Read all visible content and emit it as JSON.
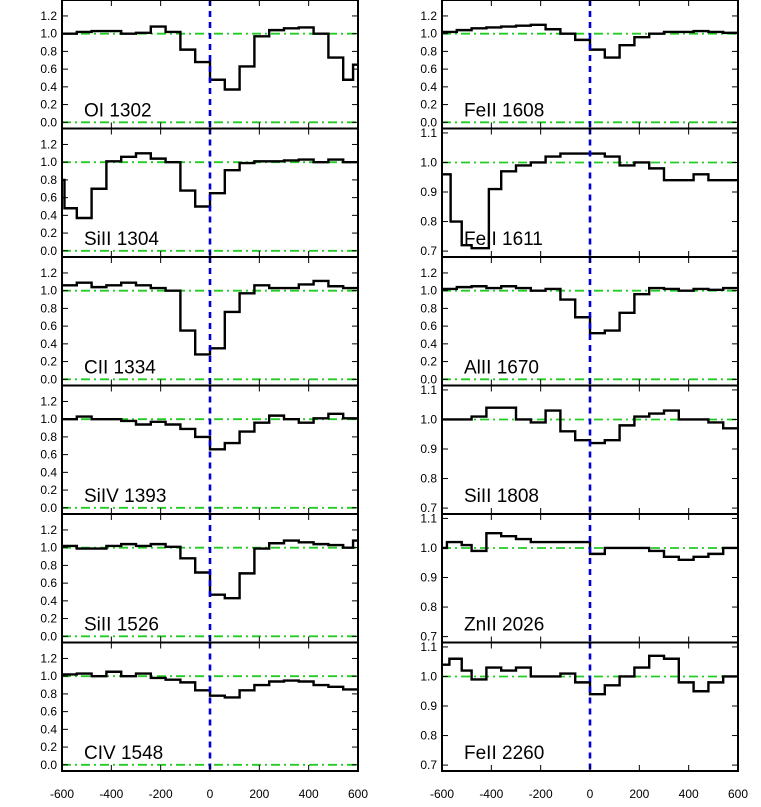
{
  "chart_data": {
    "type": "line",
    "layout": "2 columns x 6 rows of stacked velocity-profile panels",
    "x_ticks": [
      -600,
      -400,
      -200,
      0,
      200,
      400,
      600
    ],
    "xlim": [
      -600,
      600
    ],
    "xlabel": "",
    "ylabel": "",
    "colors": {
      "spectrum": "#000000",
      "reference_lines": "#22cc22",
      "zero_velocity": "#0000dd"
    },
    "panels": [
      {
        "label": "OI 1302",
        "col": 0,
        "row": 0,
        "ylim": [
          -0.07,
          1.38
        ],
        "y_ticks": [
          0.0,
          0.2,
          0.4,
          0.6,
          0.8,
          1.0,
          1.2
        ],
        "y_ticklabels": [
          "0.0",
          "0.2",
          "0.4",
          "0.6",
          "0.8",
          "1.0",
          "1.2"
        ],
        "ref_lines": [
          1.0,
          0.0
        ],
        "edges": [
          -600,
          -540,
          -480,
          -420,
          -360,
          -300,
          -240,
          -180,
          -120,
          -60,
          0,
          60,
          120,
          180,
          240,
          300,
          360,
          420,
          480,
          540,
          580,
          600
        ],
        "values": [
          1.0,
          1.02,
          1.03,
          1.03,
          1.0,
          1.01,
          1.08,
          1.02,
          0.82,
          0.68,
          0.48,
          0.37,
          0.63,
          0.97,
          1.04,
          1.06,
          1.07,
          1.0,
          0.73,
          0.48,
          0.65
        ]
      },
      {
        "label": "SiII 1304",
        "col": 0,
        "row": 1,
        "ylim": [
          -0.07,
          1.38
        ],
        "y_ticks": [
          0.0,
          0.2,
          0.4,
          0.6,
          0.8,
          1.0,
          1.2
        ],
        "y_ticklabels": [
          "0.0",
          "0.2",
          "0.4",
          "0.6",
          "0.8",
          "1.0",
          "1.2"
        ],
        "ref_lines": [
          1.0,
          0.0
        ],
        "edges": [
          -600,
          -590,
          -540,
          -480,
          -420,
          -360,
          -300,
          -240,
          -180,
          -120,
          -60,
          0,
          60,
          120,
          180,
          240,
          300,
          360,
          420,
          480,
          540,
          600
        ],
        "values": [
          0.8,
          0.48,
          0.37,
          0.7,
          1.01,
          1.06,
          1.1,
          1.04,
          1.0,
          0.68,
          0.5,
          0.65,
          0.91,
          0.99,
          1.01,
          1.01,
          1.02,
          1.03,
          1.0,
          1.03,
          1.0
        ]
      },
      {
        "label": "CII 1334",
        "col": 0,
        "row": 2,
        "ylim": [
          -0.07,
          1.38
        ],
        "y_ticks": [
          0.0,
          0.2,
          0.4,
          0.6,
          0.8,
          1.0,
          1.2
        ],
        "y_ticklabels": [
          "0.0",
          "0.2",
          "0.4",
          "0.6",
          "0.8",
          "1.0",
          "1.2"
        ],
        "ref_lines": [
          1.0,
          0.0
        ],
        "edges": [
          -600,
          -540,
          -480,
          -420,
          -360,
          -300,
          -240,
          -180,
          -120,
          -60,
          0,
          60,
          120,
          180,
          240,
          300,
          360,
          420,
          480,
          540,
          600
        ],
        "values": [
          1.06,
          1.09,
          1.04,
          1.06,
          1.09,
          1.06,
          1.03,
          1.0,
          0.55,
          0.28,
          0.35,
          0.76,
          0.97,
          1.06,
          1.03,
          1.03,
          1.07,
          1.11,
          1.05,
          1.03
        ]
      },
      {
        "label": "SiIV 1393",
        "col": 0,
        "row": 3,
        "ylim": [
          -0.07,
          1.38
        ],
        "y_ticks": [
          0.0,
          0.2,
          0.4,
          0.6,
          0.8,
          1.0,
          1.2
        ],
        "y_ticklabels": [
          "0.0",
          "0.2",
          "0.4",
          "0.6",
          "0.8",
          "1.0",
          "1.2"
        ],
        "ref_lines": [
          1.0,
          0.0
        ],
        "edges": [
          -600,
          -540,
          -480,
          -420,
          -360,
          -300,
          -240,
          -180,
          -120,
          -60,
          0,
          60,
          120,
          180,
          240,
          300,
          360,
          420,
          480,
          540,
          600
        ],
        "values": [
          1.0,
          1.03,
          1.0,
          1.0,
          0.98,
          0.94,
          0.97,
          0.94,
          0.89,
          0.8,
          0.66,
          0.73,
          0.86,
          0.96,
          1.04,
          1.0,
          0.96,
          1.01,
          1.06,
          1.01
        ]
      },
      {
        "label": "SiII 1526",
        "col": 0,
        "row": 4,
        "ylim": [
          -0.07,
          1.38
        ],
        "y_ticks": [
          0.0,
          0.2,
          0.4,
          0.6,
          0.8,
          1.0,
          1.2
        ],
        "y_ticklabels": [
          "0.0",
          "0.2",
          "0.4",
          "0.6",
          "0.8",
          "1.0",
          "1.2"
        ],
        "ref_lines": [
          1.0,
          0.0
        ],
        "edges": [
          -600,
          -540,
          -480,
          -420,
          -360,
          -300,
          -240,
          -180,
          -120,
          -60,
          0,
          60,
          120,
          180,
          240,
          300,
          360,
          420,
          480,
          540,
          580,
          600
        ],
        "values": [
          1.02,
          0.99,
          0.99,
          1.02,
          1.04,
          1.02,
          1.04,
          1.01,
          0.88,
          0.72,
          0.47,
          0.43,
          0.71,
          0.99,
          1.05,
          1.08,
          1.06,
          1.04,
          1.03,
          1.0,
          1.08
        ]
      },
      {
        "label": "CIV 1548",
        "col": 0,
        "row": 5,
        "ylim": [
          -0.07,
          1.38
        ],
        "y_ticks": [
          0.0,
          0.2,
          0.4,
          0.6,
          0.8,
          1.0,
          1.2
        ],
        "y_ticklabels": [
          "0.0",
          "0.2",
          "0.4",
          "0.6",
          "0.8",
          "1.0",
          "1.2"
        ],
        "ref_lines": [
          1.0,
          0.0
        ],
        "edges": [
          -600,
          -540,
          -480,
          -420,
          -360,
          -300,
          -240,
          -180,
          -120,
          -60,
          0,
          60,
          120,
          180,
          240,
          300,
          360,
          420,
          480,
          540,
          600
        ],
        "values": [
          1.02,
          1.03,
          1.0,
          1.05,
          1.0,
          1.03,
          0.98,
          0.96,
          0.93,
          0.84,
          0.78,
          0.76,
          0.84,
          0.9,
          0.94,
          0.95,
          0.94,
          0.9,
          0.88,
          0.85
        ]
      },
      {
        "label": "FeII 1608",
        "col": 1,
        "row": 0,
        "ylim": [
          -0.07,
          1.38
        ],
        "y_ticks": [
          0.0,
          0.2,
          0.4,
          0.6,
          0.8,
          1.0,
          1.2
        ],
        "y_ticklabels": [
          "0.0",
          "0.2",
          "0.4",
          "0.6",
          "0.8",
          "1.0",
          "1.2"
        ],
        "ref_lines": [
          1.0,
          0.0
        ],
        "edges": [
          -600,
          -540,
          -480,
          -420,
          -360,
          -300,
          -240,
          -180,
          -120,
          -60,
          0,
          60,
          120,
          180,
          240,
          300,
          360,
          420,
          480,
          540,
          600
        ],
        "values": [
          1.02,
          1.04,
          1.06,
          1.07,
          1.08,
          1.09,
          1.1,
          1.05,
          1.0,
          0.93,
          0.82,
          0.73,
          0.87,
          0.96,
          1.0,
          1.02,
          1.02,
          1.03,
          1.02,
          1.01
        ]
      },
      {
        "label": "FeII 1611",
        "col": 1,
        "row": 1,
        "ylim": [
          0.68,
          1.115
        ],
        "y_ticks": [
          0.7,
          0.8,
          0.9,
          1.0,
          1.1
        ],
        "y_ticklabels": [
          "0.7",
          "0.8",
          "0.9",
          "1.0",
          "1.1"
        ],
        "ref_lines": [
          1.0
        ],
        "edges": [
          -600,
          -565,
          -520,
          -480,
          -410,
          -360,
          -300,
          -240,
          -180,
          -120,
          -60,
          0,
          60,
          120,
          180,
          240,
          300,
          360,
          420,
          480,
          540,
          600
        ],
        "values": [
          0.96,
          0.8,
          0.72,
          0.71,
          0.91,
          0.97,
          0.99,
          1.0,
          1.02,
          1.03,
          1.03,
          1.03,
          1.02,
          0.99,
          1.0,
          0.98,
          0.94,
          0.94,
          0.96,
          0.94,
          0.94
        ]
      },
      {
        "label": "AlII 1670",
        "col": 1,
        "row": 2,
        "ylim": [
          -0.07,
          1.38
        ],
        "y_ticks": [
          0.0,
          0.2,
          0.4,
          0.6,
          0.8,
          1.0,
          1.2
        ],
        "y_ticklabels": [
          "0.0",
          "0.2",
          "0.4",
          "0.6",
          "0.8",
          "1.0",
          "1.2"
        ],
        "ref_lines": [
          1.0,
          0.0
        ],
        "edges": [
          -600,
          -540,
          -480,
          -420,
          -360,
          -300,
          -240,
          -180,
          -120,
          -60,
          0,
          60,
          120,
          180,
          240,
          300,
          360,
          420,
          480,
          540,
          600
        ],
        "values": [
          1.02,
          1.04,
          1.05,
          1.03,
          1.05,
          1.03,
          1.0,
          1.02,
          0.9,
          0.7,
          0.52,
          0.55,
          0.75,
          0.96,
          1.03,
          1.02,
          1.0,
          1.02,
          1.01,
          1.03
        ]
      },
      {
        "label": "SiII 1808",
        "col": 1,
        "row": 3,
        "ylim": [
          0.68,
          1.115
        ],
        "y_ticks": [
          0.7,
          0.8,
          0.9,
          1.0,
          1.1
        ],
        "y_ticklabels": [
          "0.7",
          "0.8",
          "0.9",
          "1.0",
          "1.1"
        ],
        "ref_lines": [
          1.0
        ],
        "edges": [
          -600,
          -540,
          -480,
          -420,
          -360,
          -300,
          -240,
          -180,
          -120,
          -60,
          0,
          60,
          120,
          180,
          240,
          300,
          360,
          420,
          480,
          540,
          600
        ],
        "values": [
          1.0,
          1.0,
          1.01,
          1.04,
          1.04,
          1.0,
          0.99,
          1.03,
          0.96,
          0.93,
          0.92,
          0.93,
          0.98,
          1.01,
          1.02,
          1.03,
          1.0,
          1.0,
          0.99,
          0.97
        ]
      },
      {
        "label": "ZnII 2026",
        "col": 1,
        "row": 4,
        "ylim": [
          0.68,
          1.115
        ],
        "y_ticks": [
          0.7,
          0.8,
          0.9,
          1.0,
          1.1
        ],
        "y_ticklabels": [
          "0.7",
          "0.8",
          "0.9",
          "1.0",
          "1.1"
        ],
        "ref_lines": [
          1.0
        ],
        "edges": [
          -600,
          -580,
          -520,
          -480,
          -420,
          -360,
          -300,
          -240,
          -180,
          -120,
          -60,
          0,
          60,
          120,
          180,
          240,
          300,
          360,
          420,
          480,
          540,
          600
        ],
        "values": [
          1.0,
          1.02,
          1.01,
          0.99,
          1.05,
          1.04,
          1.03,
          1.02,
          1.02,
          1.02,
          1.02,
          0.98,
          1.0,
          1.0,
          1.0,
          0.99,
          0.97,
          0.96,
          0.97,
          0.98,
          1.0
        ]
      },
      {
        "label": "FeII 2260",
        "col": 1,
        "row": 5,
        "ylim": [
          0.68,
          1.115
        ],
        "y_ticks": [
          0.7,
          0.8,
          0.9,
          1.0,
          1.1
        ],
        "y_ticklabels": [
          "0.7",
          "0.8",
          "0.9",
          "1.0",
          "1.1"
        ],
        "ref_lines": [
          1.0
        ],
        "edges": [
          -600,
          -570,
          -520,
          -480,
          -420,
          -360,
          -300,
          -240,
          -180,
          -120,
          -60,
          0,
          60,
          120,
          180,
          240,
          300,
          360,
          420,
          480,
          540,
          600
        ],
        "values": [
          1.04,
          1.06,
          1.02,
          0.99,
          1.03,
          1.02,
          1.03,
          1.0,
          1.0,
          1.01,
          0.98,
          0.94,
          0.97,
          1.0,
          1.03,
          1.07,
          1.06,
          0.98,
          0.95,
          0.98,
          1.0
        ]
      }
    ]
  }
}
